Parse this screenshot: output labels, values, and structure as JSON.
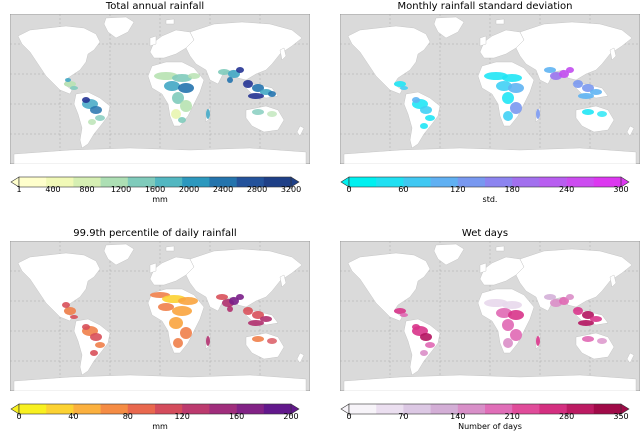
{
  "panels": [
    {
      "title": "Total annual rainfall",
      "unit": "mm",
      "ticks": [
        "1",
        "400",
        "800",
        "1200",
        "1600",
        "2000",
        "2400",
        "2800",
        "3200"
      ],
      "colors": [
        "#ffffcc",
        "#f1f9b7",
        "#d6efb3",
        "#addfb4",
        "#7fcbbb",
        "#52b7c1",
        "#2c98be",
        "#2474ad",
        "#23529b",
        "#1e3f87"
      ],
      "spot_colors": [
        "#e8f5b0",
        "#b7e2b1",
        "#7fcbbb",
        "#41a7c4",
        "#2473ae",
        "#253494"
      ]
    },
    {
      "title": "Monthly rainfall standard deviation",
      "unit": "std.",
      "ticks": [
        "0",
        "60",
        "120",
        "180",
        "240",
        "300"
      ],
      "colors": [
        "#00f0f0",
        "#20e0f2",
        "#40c8f2",
        "#60b0f2",
        "#7898f0",
        "#8c84f0",
        "#a270ee",
        "#b85ef0",
        "#cc4cf0",
        "#dc38f0"
      ],
      "spot_colors": [
        "#20e6f5",
        "#40d0f5",
        "#5fb4f3",
        "#7a98f0",
        "#9a76ee",
        "#c24cf0"
      ]
    },
    {
      "title": "99.9th percentile of daily rainfall",
      "unit": "mm",
      "ticks": [
        "0",
        "40",
        "80",
        "120",
        "160",
        "200"
      ],
      "colors": [
        "#f8f020",
        "#fcd232",
        "#fbb03e",
        "#f58c44",
        "#e9684e",
        "#d44c5c",
        "#bc3a6e",
        "#a02d7c",
        "#822286",
        "#62188c"
      ],
      "spot_colors": [
        "#fcd232",
        "#f9a43e",
        "#f0804a",
        "#d8505a",
        "#b0306e",
        "#7a1e88"
      ]
    },
    {
      "title": "Wet days",
      "unit": "Number of days",
      "ticks": [
        "0",
        "70",
        "140",
        "210",
        "280",
        "350"
      ],
      "colors": [
        "#f7f4f9",
        "#ebdff0",
        "#dcc8e4",
        "#d3aed6",
        "#d88fc8",
        "#e06eb8",
        "#e04c9a",
        "#d42f80",
        "#bc1a62",
        "#a00a48"
      ],
      "spot_colors": [
        "#e8d8ec",
        "#d4b0d8",
        "#da8ec8",
        "#e068b4",
        "#d8348a",
        "#b41460"
      ]
    }
  ]
}
